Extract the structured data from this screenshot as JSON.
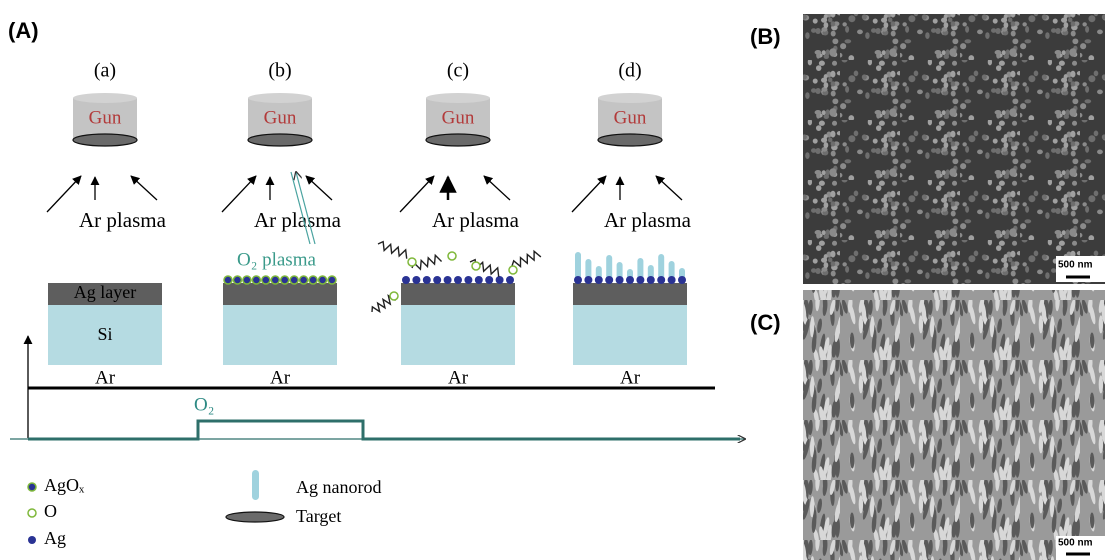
{
  "panel_a": {
    "label": "(A)",
    "stages": [
      {
        "label": "(a)",
        "gun": "Gun",
        "plasma": "Ar plasma",
        "gas": "Ar"
      },
      {
        "label": "(b)",
        "gun": "Gun",
        "plasma": "Ar plasma",
        "gas": "Ar"
      },
      {
        "label": "(c)",
        "gun": "Gun",
        "plasma": "Ar plasma",
        "gas": "Ar"
      },
      {
        "label": "(d)",
        "gun": "Gun",
        "plasma": "Ar plasma",
        "gas": "Ar"
      }
    ],
    "o2_plasma": "O₂ plasma",
    "ag_layer": "Ag layer",
    "si": "Si",
    "o2_gas": "O₂",
    "legend": [
      {
        "label": "AgOₓ"
      },
      {
        "label": "O"
      },
      {
        "label": "Ag"
      },
      {
        "label": "Ag nanorod"
      },
      {
        "label": "Target"
      }
    ]
  },
  "panel_b": {
    "label": "(B)",
    "scale_bar": "500 nm"
  },
  "panel_c": {
    "label": "(C)",
    "scale_bar": "500 nm"
  }
}
